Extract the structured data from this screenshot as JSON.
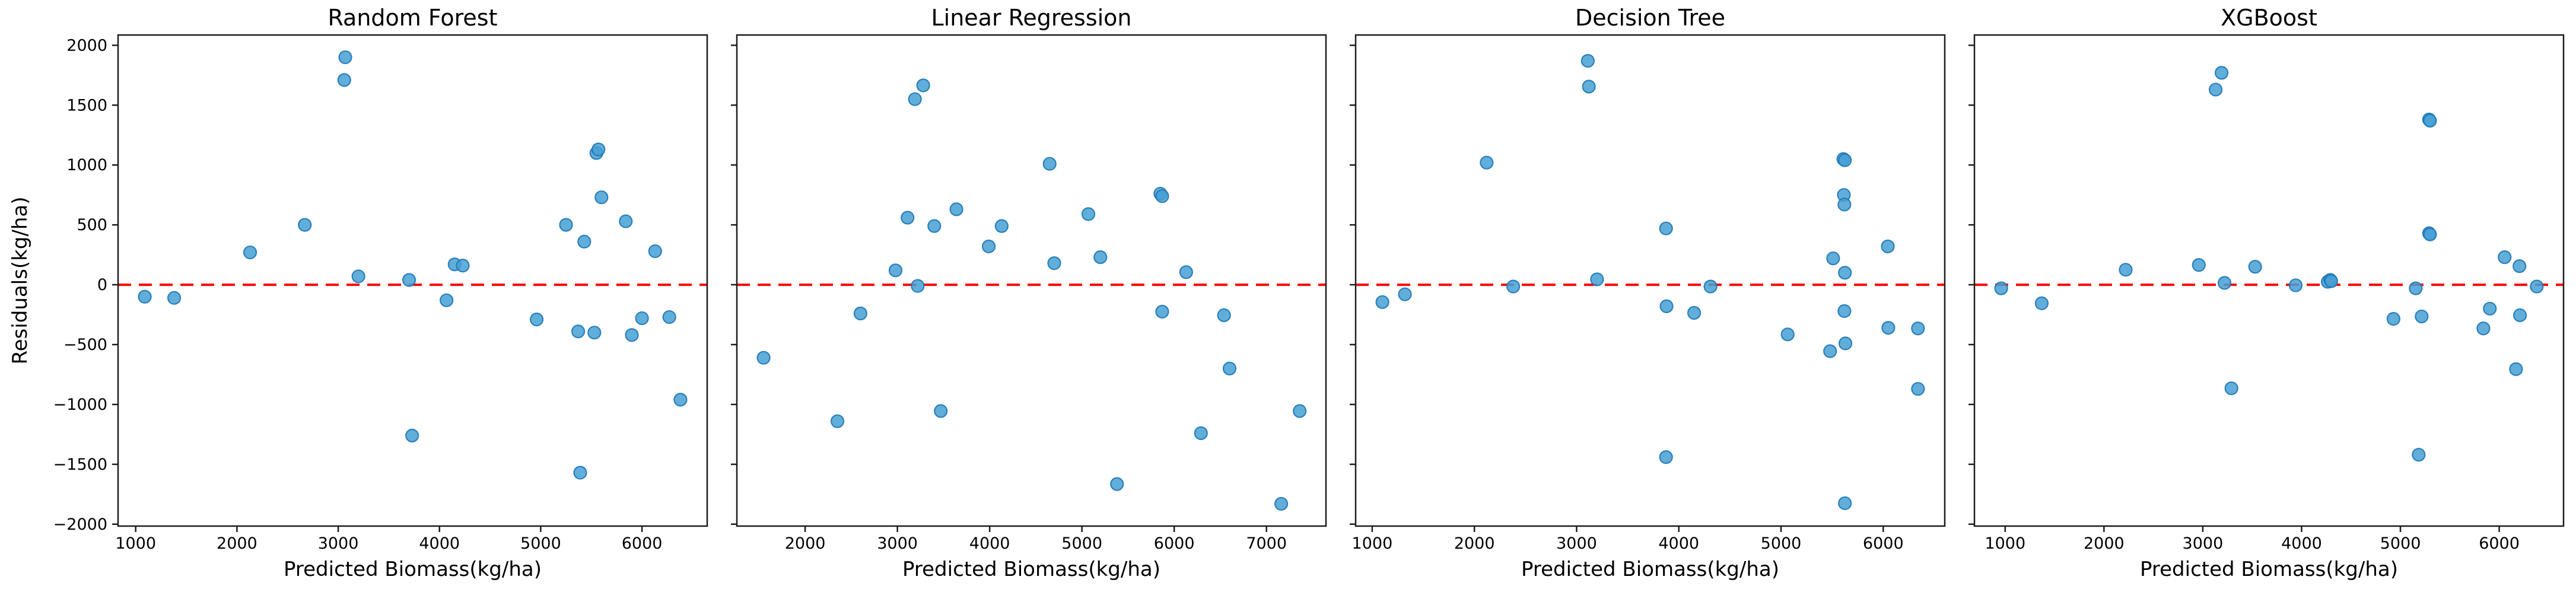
{
  "figure": {
    "ylabel": "Residuals(kg/ha)",
    "background": "#ffffff",
    "colors": {
      "marker_fill": "#45a0d5",
      "marker_edge": "#1f77b4",
      "zero_line": "#ff0000",
      "spine": "#1c1c1c",
      "text": "#000000"
    }
  },
  "chart_data": [
    {
      "type": "scatter",
      "title": "Random Forest",
      "xlabel": "Predicted Biomass(kg/ha)",
      "ylabel": "Residuals(kg/ha)",
      "xlim": [
        826,
        6644
      ],
      "ylim": [
        -2016,
        2086
      ],
      "xticks": [
        1000,
        2000,
        3000,
        4000,
        5000,
        6000
      ],
      "yticks": [
        2000,
        1500,
        1000,
        500,
        0,
        -500,
        -1000,
        -1500,
        -2000
      ],
      "show_y_tick_labels": true,
      "zero_line": true,
      "grid": false,
      "points": [
        [
          1090,
          -100
        ],
        [
          1380,
          -110
        ],
        [
          2130,
          270
        ],
        [
          2670,
          500
        ],
        [
          3060,
          1710
        ],
        [
          3070,
          1900
        ],
        [
          3200,
          70
        ],
        [
          3700,
          40
        ],
        [
          3730,
          -1260
        ],
        [
          4070,
          -130
        ],
        [
          4150,
          170
        ],
        [
          4230,
          160
        ],
        [
          4960,
          -290
        ],
        [
          5250,
          500
        ],
        [
          5370,
          -390
        ],
        [
          5390,
          -1570
        ],
        [
          5430,
          360
        ],
        [
          5530,
          -400
        ],
        [
          5550,
          1100
        ],
        [
          5570,
          1130
        ],
        [
          5600,
          730
        ],
        [
          5840,
          530
        ],
        [
          5900,
          -420
        ],
        [
          6000,
          -280
        ],
        [
          6130,
          280
        ],
        [
          6270,
          -270
        ],
        [
          6380,
          -960
        ]
      ]
    },
    {
      "type": "scatter",
      "title": "Linear Regression",
      "xlabel": "Predicted Biomass(kg/ha)",
      "ylabel": "Residuals(kg/ha)",
      "xlim": [
        1260,
        7645
      ],
      "ylim": [
        -2016,
        2086
      ],
      "xticks": [
        2000,
        3000,
        4000,
        5000,
        6000,
        7000
      ],
      "yticks": [
        2000,
        1500,
        1000,
        500,
        0,
        -500,
        -1000,
        -1500,
        -2000
      ],
      "show_y_tick_labels": false,
      "zero_line": true,
      "grid": false,
      "points": [
        [
          1550,
          -610
        ],
        [
          2350,
          -1140
        ],
        [
          2600,
          -240
        ],
        [
          2980,
          120
        ],
        [
          3110,
          560
        ],
        [
          3190,
          1550
        ],
        [
          3220,
          -10
        ],
        [
          3280,
          1665
        ],
        [
          3400,
          490
        ],
        [
          3470,
          -1055
        ],
        [
          3640,
          630
        ],
        [
          3990,
          320
        ],
        [
          4130,
          490
        ],
        [
          4650,
          1010
        ],
        [
          4700,
          180
        ],
        [
          5070,
          590
        ],
        [
          5200,
          230
        ],
        [
          5380,
          -1665
        ],
        [
          5850,
          760
        ],
        [
          5870,
          740
        ],
        [
          5870,
          -225
        ],
        [
          6130,
          105
        ],
        [
          6290,
          -1240
        ],
        [
          6540,
          -255
        ],
        [
          6600,
          -700
        ],
        [
          7160,
          -1830
        ],
        [
          7360,
          -1055
        ]
      ]
    },
    {
      "type": "scatter",
      "title": "Decision Tree",
      "xlabel": "Predicted Biomass(kg/ha)",
      "ylabel": "Residuals(kg/ha)",
      "xlim": [
        838,
        6602
      ],
      "ylim": [
        -2016,
        2086
      ],
      "xticks": [
        1000,
        2000,
        3000,
        4000,
        5000,
        6000
      ],
      "yticks": [
        2000,
        1500,
        1000,
        500,
        0,
        -500,
        -1000,
        -1500,
        -2000
      ],
      "show_y_tick_labels": false,
      "zero_line": true,
      "grid": false,
      "points": [
        [
          1100,
          -145
        ],
        [
          1320,
          -80
        ],
        [
          2120,
          1020
        ],
        [
          2380,
          -15
        ],
        [
          3110,
          1870
        ],
        [
          3120,
          1655
        ],
        [
          3200,
          45
        ],
        [
          3875,
          470
        ],
        [
          3880,
          -180
        ],
        [
          3875,
          -1440
        ],
        [
          4150,
          -235
        ],
        [
          4310,
          -15
        ],
        [
          5065,
          -415
        ],
        [
          5480,
          -555
        ],
        [
          5510,
          220
        ],
        [
          5610,
          1050
        ],
        [
          5625,
          1040
        ],
        [
          5615,
          750
        ],
        [
          5620,
          670
        ],
        [
          5625,
          100
        ],
        [
          5620,
          -220
        ],
        [
          5630,
          -490
        ],
        [
          5625,
          -1825
        ],
        [
          6045,
          320
        ],
        [
          6050,
          -360
        ],
        [
          6340,
          -365
        ],
        [
          6340,
          -870
        ]
      ]
    },
    {
      "type": "scatter",
      "title": "XGBoost",
      "xlabel": "Predicted Biomass(kg/ha)",
      "ylabel": "Residuals(kg/ha)",
      "xlim": [
        689,
        6651
      ],
      "ylim": [
        -2016,
        2086
      ],
      "xticks": [
        1000,
        2000,
        3000,
        4000,
        5000,
        6000
      ],
      "yticks": [
        2000,
        1500,
        1000,
        500,
        0,
        -500,
        -1000,
        -1500,
        -2000
      ],
      "show_y_tick_labels": false,
      "zero_line": true,
      "grid": false,
      "points": [
        [
          960,
          -30
        ],
        [
          1370,
          -155
        ],
        [
          2220,
          125
        ],
        [
          2960,
          165
        ],
        [
          3130,
          1630
        ],
        [
          3190,
          1770
        ],
        [
          3220,
          15
        ],
        [
          3290,
          -865
        ],
        [
          3530,
          150
        ],
        [
          3940,
          -5
        ],
        [
          4265,
          25
        ],
        [
          4290,
          40
        ],
        [
          4300,
          30
        ],
        [
          4930,
          -285
        ],
        [
          5155,
          -30
        ],
        [
          5185,
          -1420
        ],
        [
          5215,
          -265
        ],
        [
          5290,
          1380
        ],
        [
          5300,
          1370
        ],
        [
          5290,
          430
        ],
        [
          5300,
          420
        ],
        [
          5840,
          -365
        ],
        [
          5905,
          -200
        ],
        [
          6055,
          230
        ],
        [
          6170,
          -705
        ],
        [
          6205,
          155
        ],
        [
          6210,
          -255
        ],
        [
          6380,
          -15
        ]
      ]
    }
  ]
}
